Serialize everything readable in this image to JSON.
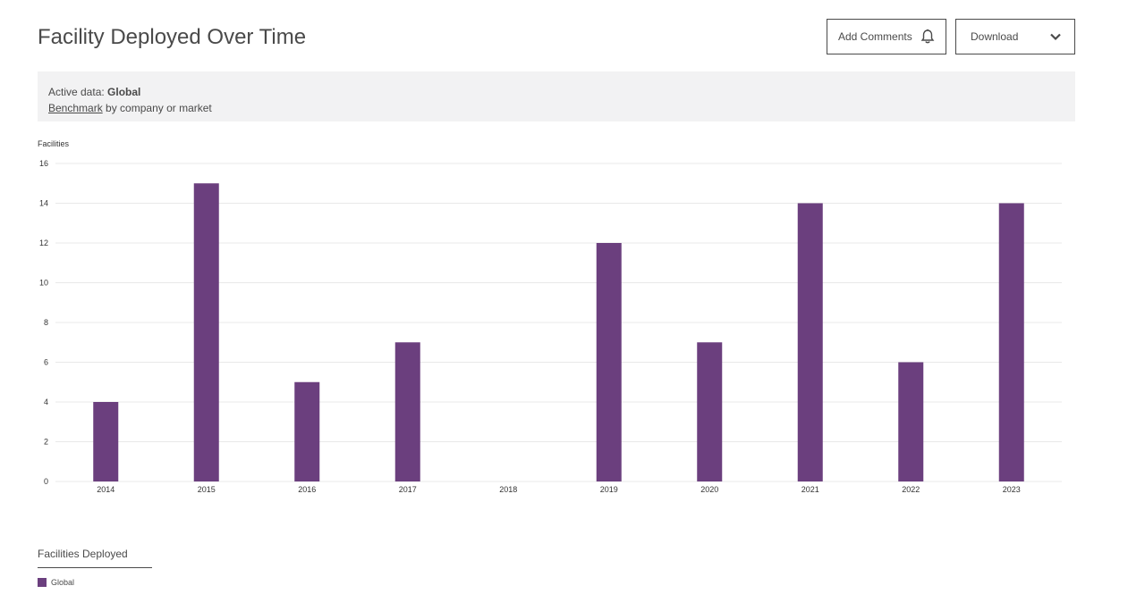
{
  "page": {
    "title": "Facility Deployed Over Time"
  },
  "toolbar": {
    "comments_label": "Add Comments",
    "comments_icon": "bell-icon",
    "download_label": "Download",
    "download_icon": "chevron-down-icon"
  },
  "banner": {
    "active_prefix": "Active data:",
    "active_value": "Global",
    "benchmark_link": "Benchmark",
    "benchmark_suffix": "by company or market"
  },
  "legend": {
    "title": "Facilities Deployed",
    "items": [
      {
        "label": "Global",
        "color": "#6b3f7e"
      }
    ]
  },
  "chart_data": {
    "type": "bar",
    "title": "",
    "ylabel": "Facilities",
    "xlabel": "",
    "categories": [
      "2014",
      "2015",
      "2016",
      "2017",
      "2018",
      "2019",
      "2020",
      "2021",
      "2022",
      "2023"
    ],
    "series": [
      {
        "name": "Global",
        "values": [
          4,
          15,
          5,
          7,
          0,
          12,
          7,
          14,
          6,
          14
        ],
        "color": "#6b3f7e"
      }
    ],
    "ylim": [
      0,
      16
    ],
    "yticks": [
      0,
      2,
      4,
      6,
      8,
      10,
      12,
      14,
      16
    ],
    "grid": true,
    "legend_position": "bottom-left"
  }
}
